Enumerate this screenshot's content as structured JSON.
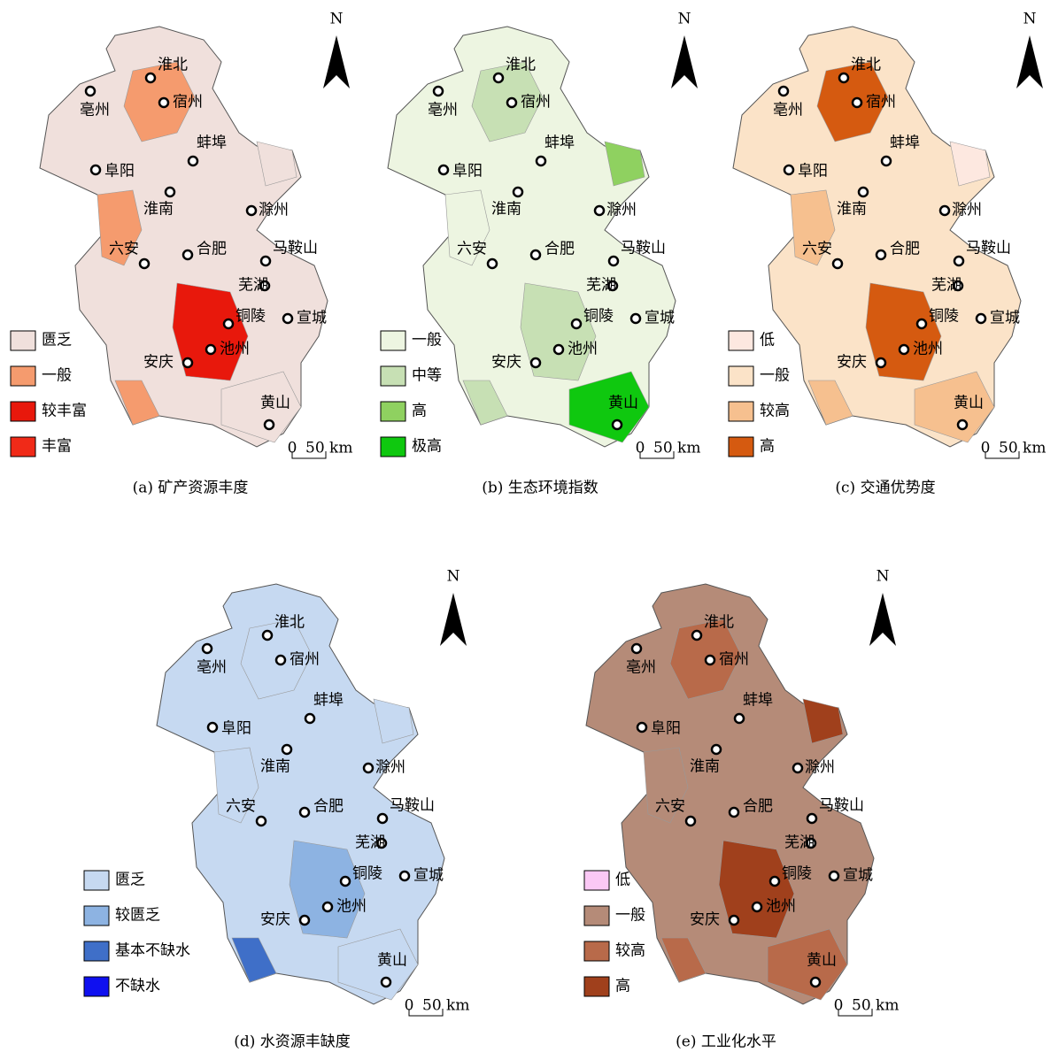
{
  "north": "N",
  "scale": {
    "zero": "0",
    "label": "50 km"
  },
  "cities": [
    "淮北",
    "亳州",
    "宿州",
    "阜阳",
    "蚌埠",
    "淮南",
    "滁州",
    "六安",
    "合肥",
    "马鞍山",
    "芜湖",
    "宣城",
    "铜陵",
    "池州",
    "安庆",
    "黄山"
  ],
  "maps": [
    {
      "caption": "(a)  矿产资源丰度",
      "legend": [
        {
          "label": "匮乏",
          "color": "#f0e0dc"
        },
        {
          "label": "一般",
          "color": "#f59b6e"
        },
        {
          "label": "较丰富",
          "color": "#e8180c"
        },
        {
          "label": "丰富",
          "color": "#f02a18"
        }
      ]
    },
    {
      "caption": "(b)  生态环境指数",
      "legend": [
        {
          "label": "一般",
          "color": "#edf5e1"
        },
        {
          "label": "中等",
          "color": "#c7e0b4"
        },
        {
          "label": "高",
          "color": "#8fd160"
        },
        {
          "label": "极高",
          "color": "#0fc80f"
        }
      ]
    },
    {
      "caption": "(c)  交通优势度",
      "legend": [
        {
          "label": "低",
          "color": "#fde8e0"
        },
        {
          "label": "一般",
          "color": "#fbe3c8"
        },
        {
          "label": "较高",
          "color": "#f6c08f"
        },
        {
          "label": "高",
          "color": "#d55a10"
        }
      ]
    },
    {
      "caption": "(d)  水资源丰缺度",
      "legend": [
        {
          "label": "匮乏",
          "color": "#c6d9f1"
        },
        {
          "label": "较匮乏",
          "color": "#8db3e2"
        },
        {
          "label": "基本不缺水",
          "color": "#3f6fc8"
        },
        {
          "label": "不缺水",
          "color": "#0f10f0"
        }
      ]
    },
    {
      "caption": "(e)  工业化水平",
      "legend": [
        {
          "label": "低",
          "color": "#fbc8f5"
        },
        {
          "label": "一般",
          "color": "#b58b78"
        },
        {
          "label": "较高",
          "color": "#b86a4a"
        },
        {
          "label": "高",
          "color": "#a0401c"
        }
      ]
    }
  ]
}
